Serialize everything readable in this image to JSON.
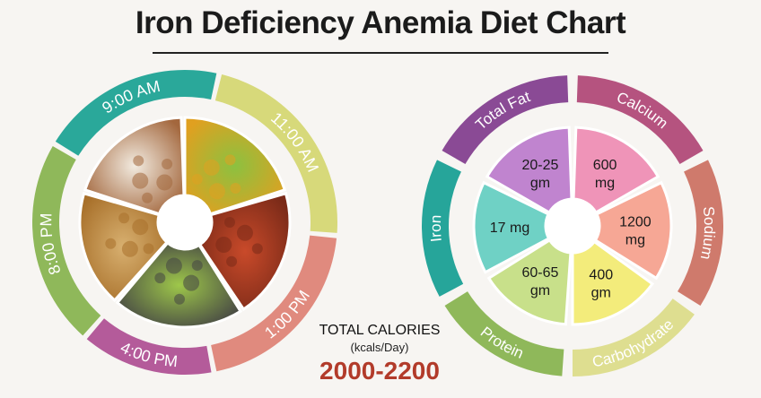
{
  "title": "Iron Deficiency Anemia Diet Chart",
  "left_wheel": {
    "segments": [
      {
        "label": "9:00 AM",
        "color": "#2aa89a"
      },
      {
        "label": "11:00 AM",
        "color": "#d7d97a"
      },
      {
        "label": "1:00 PM",
        "color": "#e08a7e"
      },
      {
        "label": "4:00 PM",
        "color": "#b45b9a"
      },
      {
        "label": "8:00 PM",
        "color": "#8fb85a"
      }
    ],
    "food_icons": [
      "milk-almonds-icon",
      "fruits-icon",
      "fish-curry-icon",
      "green-tea-icon",
      "flatbread-curry-icon"
    ]
  },
  "calories": {
    "label": "TOTAL CALORIES",
    "unit": "(kcals/Day)",
    "value": "2000-2200"
  },
  "right_wheel": {
    "segments": [
      {
        "label": "Total Fat",
        "value_line1": "20-25",
        "value_line2": "gm",
        "outer_color": "#8a4a95",
        "inner_color": "#c084cf"
      },
      {
        "label": "Calcium",
        "value_line1": "600",
        "value_line2": "mg",
        "outer_color": "#b5537f",
        "inner_color": "#ef94b8"
      },
      {
        "label": "Sodium",
        "value_line1": "1200",
        "value_line2": "mg",
        "outer_color": "#cf7a6c",
        "inner_color": "#f6a795"
      },
      {
        "label": "Carbohydrate",
        "value_line1": "400",
        "value_line2": "gm",
        "outer_color": "#dede90",
        "inner_color": "#f3ec7b"
      },
      {
        "label": "Protein",
        "value_line1": "60-65",
        "value_line2": "gm",
        "outer_color": "#8fb85a",
        "inner_color": "#c8e08a"
      },
      {
        "label": "Iron",
        "value_line1": "17 mg",
        "value_line2": "",
        "outer_color": "#26a59a",
        "inner_color": "#6fd1c5"
      }
    ]
  }
}
